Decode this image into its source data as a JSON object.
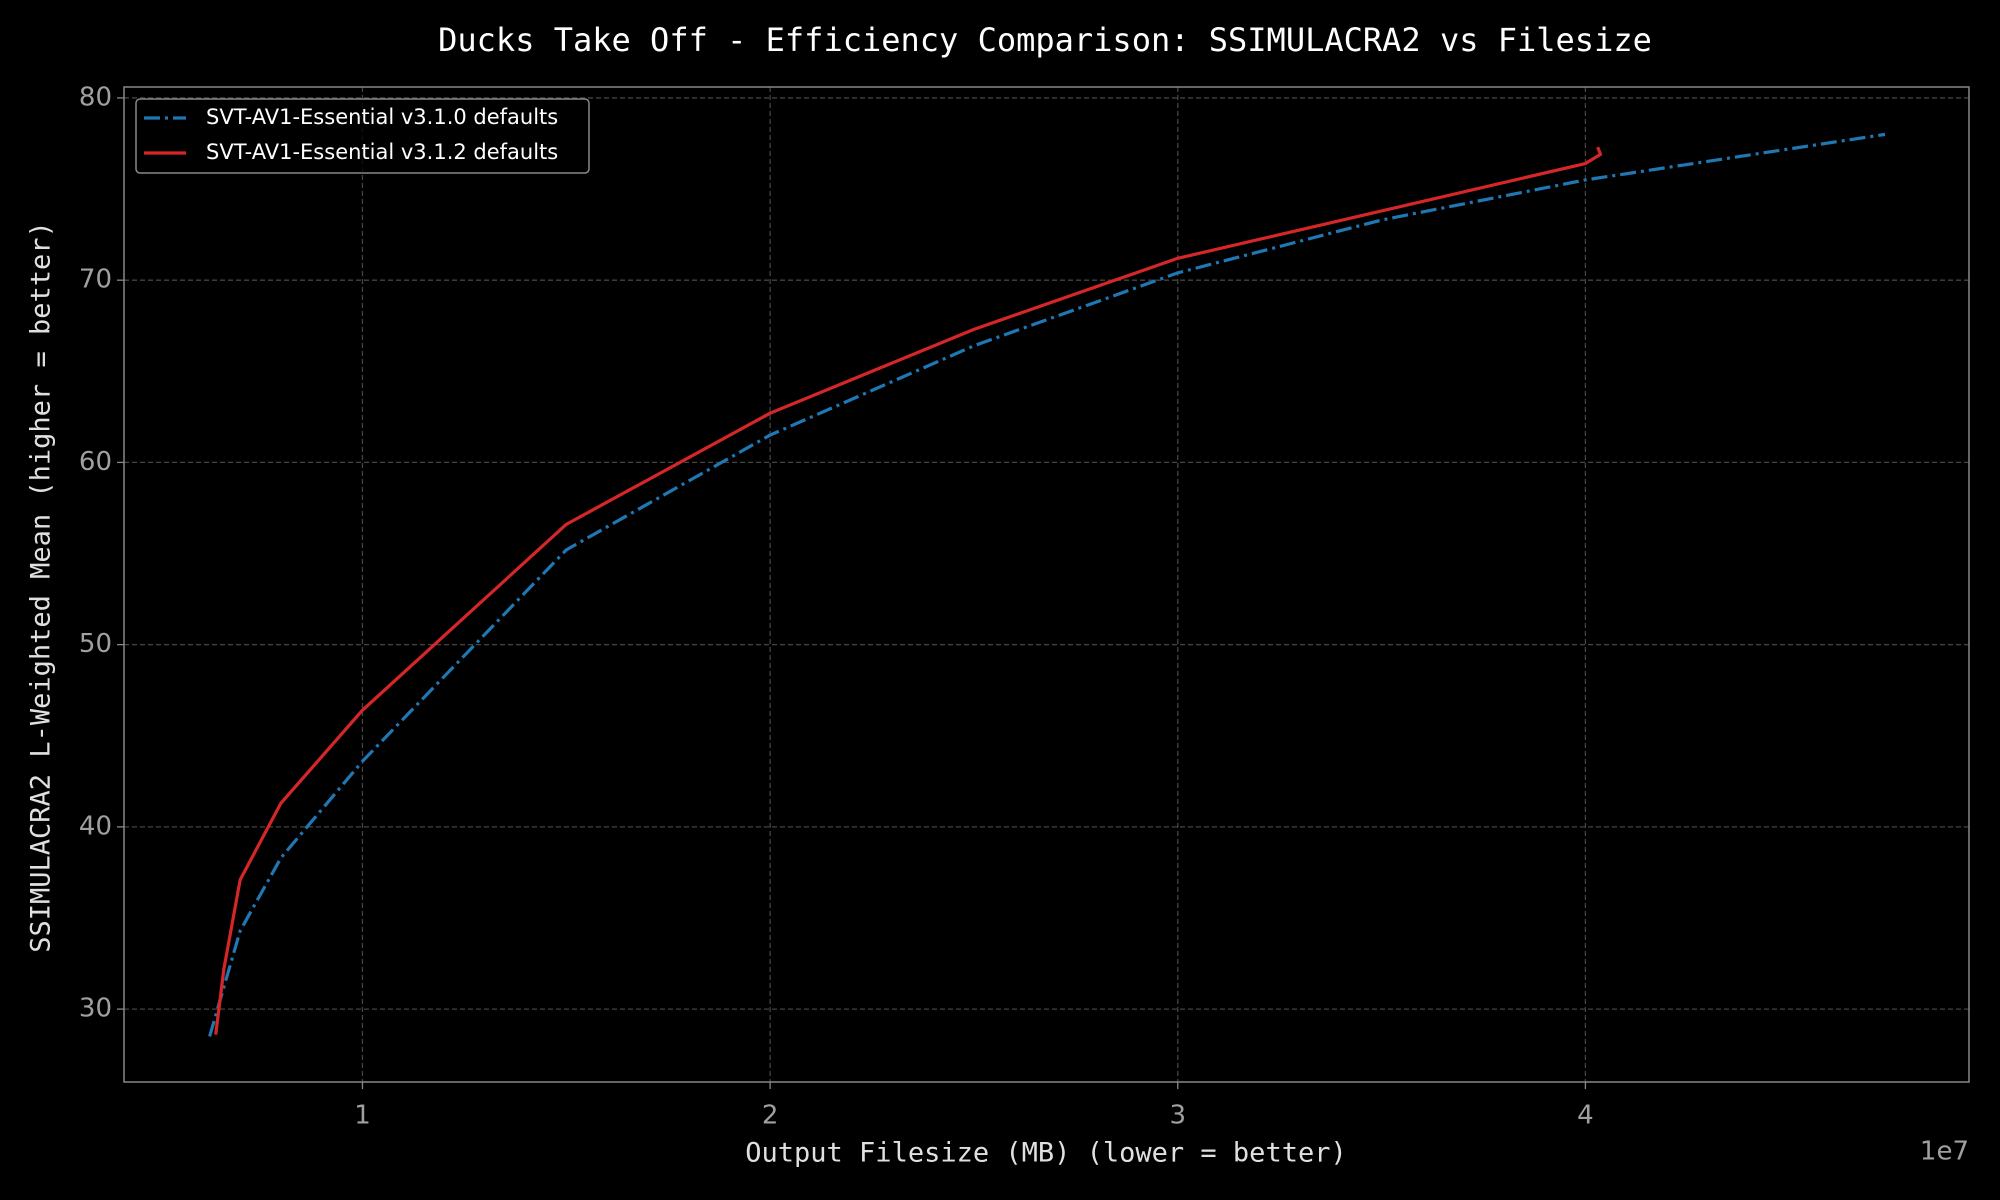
{
  "chart_data": {
    "type": "line",
    "title": "Ducks Take Off - Efficiency Comparison: SSIMULACRA2 vs Filesize",
    "x_label": "Output Filesize (MB) (lower = better)",
    "y_label": "SSIMULACRA2 L-Weighted Mean (higher = better)",
    "x_offset_label": "1e7",
    "xlim": [
      4150000,
      49410000
    ],
    "ylim": [
      26,
      80.6
    ],
    "xticks": [
      {
        "value": 10000000,
        "label": "1"
      },
      {
        "value": 20000000,
        "label": "2"
      },
      {
        "value": 30000000,
        "label": "3"
      },
      {
        "value": 40000000,
        "label": "4"
      }
    ],
    "yticks": [
      30,
      40,
      50,
      60,
      70,
      80
    ],
    "grid": true,
    "legend_loc": "upper left",
    "series": [
      {
        "name": "SVT-AV1-Essential v3.1.0 defaults",
        "color": "#1f77b4",
        "linestyle": "dashdot",
        "x": [
          6250000,
          7000000,
          8000000,
          10000000,
          15000000,
          20000000,
          25000000,
          30000000,
          35000000,
          40000000,
          47350000
        ],
        "values": [
          28.5,
          34.3,
          38.3,
          43.6,
          55.2,
          61.5,
          66.4,
          70.4,
          73.3,
          75.5,
          78.0
        ]
      },
      {
        "name": "SVT-AV1-Essential v3.1.2 defaults",
        "color": "#d62728",
        "linestyle": "solid",
        "x": [
          6400000,
          6600000,
          7000000,
          8000000,
          10000000,
          15000000,
          20000000,
          25000000,
          30000000,
          35000000,
          40000000,
          40370000,
          40300000
        ],
        "values": [
          28.6,
          32.2,
          37.1,
          41.3,
          46.4,
          56.6,
          62.7,
          67.3,
          71.2,
          73.8,
          76.4,
          76.9,
          77.3
        ]
      }
    ]
  }
}
